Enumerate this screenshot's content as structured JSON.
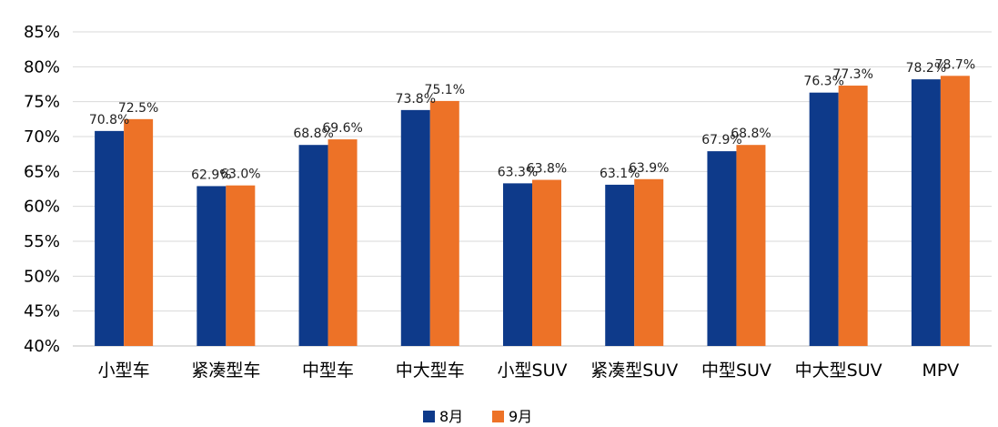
{
  "chart_data": {
    "type": "bar",
    "categories": [
      "小型车",
      "紧凑型车",
      "中型车",
      "中大型车",
      "小型SUV",
      "紧凑型SUV",
      "中型SUV",
      "中大型SUV",
      "MPV"
    ],
    "series": [
      {
        "name": "8月",
        "color": "#0e3a8a",
        "values": [
          70.8,
          62.9,
          68.8,
          73.8,
          63.3,
          63.1,
          67.9,
          76.3,
          78.2
        ]
      },
      {
        "name": "9月",
        "color": "#ed7227",
        "values": [
          72.5,
          63.0,
          69.6,
          75.1,
          63.8,
          63.9,
          68.8,
          77.3,
          78.7
        ]
      }
    ],
    "ylim": [
      40,
      85
    ],
    "ytick_step": 5,
    "ytick_labels": [
      "40%",
      "45%",
      "50%",
      "55%",
      "60%",
      "65%",
      "70%",
      "75%",
      "80%",
      "85%"
    ],
    "data_labels": [
      [
        "70.8%",
        "62.9%",
        "68.8%",
        "73.8%",
        "63.3%",
        "63.1%",
        "67.9%",
        "76.3%",
        "78.2%"
      ],
      [
        "72.5%",
        "63.0%",
        "69.6%",
        "75.1%",
        "63.8%",
        "63.9%",
        "68.8%",
        "77.3%",
        "78.7%"
      ]
    ],
    "grid": true,
    "legend": "bottom-center",
    "title": "",
    "xlabel": "",
    "ylabel": ""
  }
}
